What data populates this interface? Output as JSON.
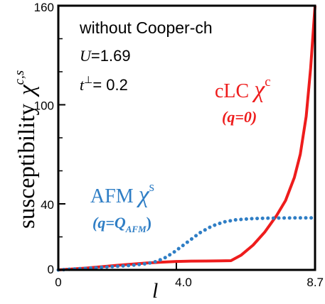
{
  "chart_data": {
    "type": "line",
    "xlim": [
      0,
      8.7
    ],
    "ylim": [
      0,
      160
    ],
    "x_ticks": [
      {
        "value": 0,
        "label": "0"
      },
      {
        "value": 4.0,
        "label": "4.0"
      },
      {
        "value": 8.7,
        "label": "8.7"
      }
    ],
    "y_ticks": [
      {
        "value": 0,
        "label": "0"
      },
      {
        "value": 40,
        "label": "40"
      },
      {
        "value": 100,
        "label": "100"
      },
      {
        "value": 160,
        "label": "160"
      }
    ],
    "y_minor_ticks": [
      20,
      60,
      80,
      120,
      140
    ],
    "xlabel": "l",
    "ylabel": "susceptibility",
    "ylabel_symbol": "χ",
    "ylabel_superscript": "c,s",
    "annotations": {
      "line1": "without Cooper-ch",
      "line2_var": "U",
      "line2_val": "=1.69",
      "line3_var": "t",
      "line3_sup": "⊥",
      "line3_val": "= 0.2"
    },
    "series": [
      {
        "name": "cLC χc",
        "label_main": "cLC ",
        "label_symbol": "χ",
        "label_sup": "c",
        "label_sub": "(q=0)",
        "color": "#ee1c1c",
        "style": "solid",
        "x": [
          0,
          0.5,
          1.0,
          1.5,
          2.0,
          2.5,
          3.0,
          3.5,
          4.0,
          4.5,
          5.0,
          5.5,
          5.85,
          6.2,
          6.6,
          7.0,
          7.4,
          7.7,
          8.0,
          8.2,
          8.4,
          8.55,
          8.7
        ],
        "y": [
          0,
          0.6,
          1.2,
          2.0,
          2.8,
          3.5,
          4.2,
          4.7,
          5.1,
          5.3,
          5.4,
          5.5,
          5.6,
          9,
          15,
          23,
          33,
          42,
          56,
          70,
          93,
          122,
          160
        ]
      },
      {
        "name": "AFM χs",
        "label_main": "AFM ",
        "label_symbol": "χ",
        "label_sup": "s",
        "label_sub": "(q=Q",
        "label_sub_sub": "AFM",
        "label_sub_close": ")",
        "color": "#2f7ec5",
        "style": "dotted",
        "x": [
          0,
          0.5,
          1.0,
          1.5,
          2.0,
          2.5,
          3.0,
          3.3,
          3.6,
          3.9,
          4.2,
          4.5,
          4.8,
          5.2,
          5.6,
          6.0,
          6.5,
          7.0,
          7.5,
          8.0,
          8.7
        ],
        "y": [
          0,
          0.5,
          1.0,
          1.6,
          2.2,
          2.8,
          3.8,
          5.0,
          7.2,
          10.5,
          14.5,
          18.5,
          22.5,
          26.5,
          29.0,
          30.3,
          31.0,
          31.3,
          31.4,
          31.5,
          31.5
        ]
      }
    ],
    "grid": false,
    "legend": "inline-labels"
  }
}
